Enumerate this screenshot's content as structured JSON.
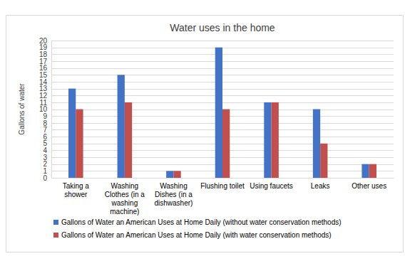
{
  "chart_data": {
    "type": "bar",
    "title": "Water uses in the home",
    "y_label": "Gallons of water",
    "categories": [
      "Taking a shower",
      "Washing Clothes (in a washing machine)",
      "Washing Dishes (in a dishwasher)",
      "Flushing toilet",
      "Using faucets",
      "Leaks",
      "Other uses"
    ],
    "series": [
      {
        "name": "Gallons of Water an American Uses at Home Daily (without water conservation methods)",
        "color": "#4472c4",
        "values": [
          13,
          15,
          1,
          19,
          11,
          10,
          2
        ]
      },
      {
        "name": "Gallons of Water an American Uses at Home Daily (with water conservation methods)",
        "color": "#c0504d",
        "values": [
          10,
          11,
          1,
          10,
          11,
          5,
          2
        ]
      }
    ],
    "ylim": [
      0,
      20
    ],
    "yticks": [
      0,
      1,
      2,
      3,
      4,
      5,
      6,
      7,
      8,
      9,
      10,
      11,
      12,
      13,
      14,
      15,
      16,
      17,
      18,
      19,
      20
    ],
    "grid": true,
    "legend": "bottom"
  }
}
